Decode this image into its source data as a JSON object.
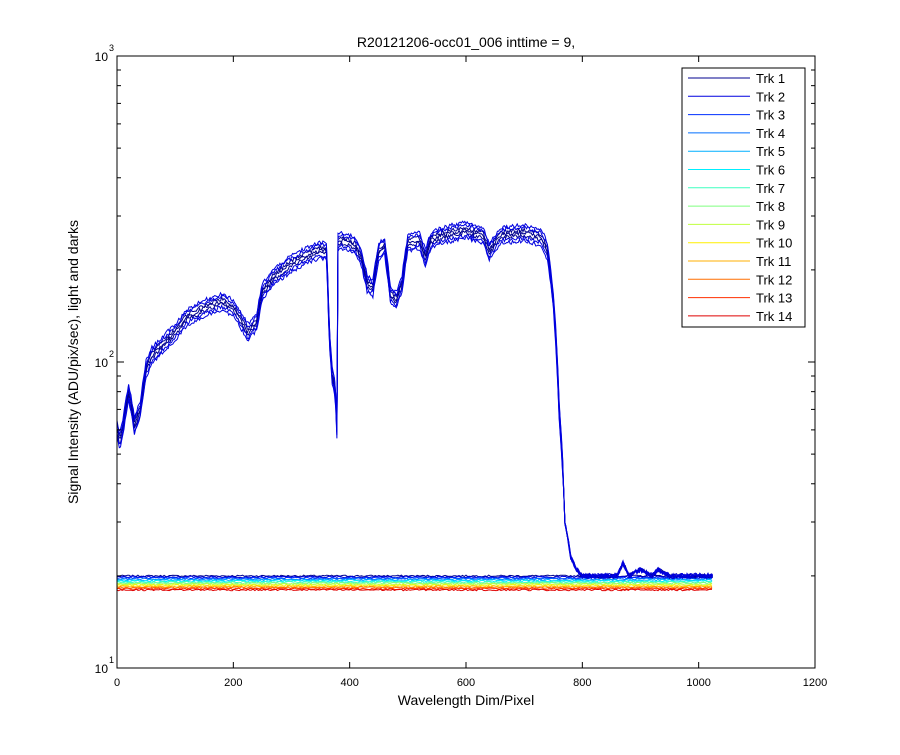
{
  "chart_data": {
    "type": "line",
    "title": "R20121206-occ01_006 inttime = 9,",
    "xlabel": "Wavelength Dim/Pixel",
    "ylabel": "Signal Intensity (ADU/pix/sec), light and darks",
    "xlim": [
      0,
      1200
    ],
    "ylim": [
      10,
      1000
    ],
    "y_scale": "log",
    "grid": false,
    "legend_position": "top-right",
    "x_ticks": [
      "0",
      "200",
      "400",
      "600",
      "800",
      "1000",
      "1200"
    ],
    "y_ticks": [
      {
        "base": "10",
        "exp": "1"
      },
      {
        "base": "10",
        "exp": "2"
      },
      {
        "base": "10",
        "exp": "3"
      }
    ],
    "series_colors": [
      "#00008f",
      "#0000df",
      "#002fff",
      "#006fff",
      "#00afff",
      "#00efff",
      "#3fffbf",
      "#7fff7f",
      "#bfff3f",
      "#ffef00",
      "#ffaf00",
      "#ff6f00",
      "#ff2f00",
      "#df0000"
    ],
    "series": [
      {
        "name": "Trk 1"
      },
      {
        "name": "Trk 2"
      },
      {
        "name": "Trk 3"
      },
      {
        "name": "Trk 4"
      },
      {
        "name": "Trk 5"
      },
      {
        "name": "Trk 6"
      },
      {
        "name": "Trk 7"
      },
      {
        "name": "Trk 8"
      },
      {
        "name": "Trk 9"
      },
      {
        "name": "Trk 10"
      },
      {
        "name": "Trk 11"
      },
      {
        "name": "Trk 12"
      },
      {
        "name": "Trk 13"
      },
      {
        "name": "Trk 14"
      }
    ],
    "light_spectrum": {
      "x": [
        0,
        5,
        10,
        20,
        30,
        40,
        50,
        60,
        80,
        100,
        120,
        150,
        180,
        200,
        220,
        225,
        240,
        250,
        270,
        300,
        330,
        350,
        360,
        365,
        370,
        375,
        378,
        380,
        385,
        400,
        410,
        420,
        430,
        440,
        450,
        460,
        470,
        480,
        490,
        500,
        520,
        530,
        540,
        560,
        580,
        600,
        630,
        640,
        660,
        700,
        730,
        740,
        750,
        760,
        770,
        780,
        790,
        800,
        820,
        850,
        860,
        870,
        880,
        900,
        920,
        930,
        950,
        1000,
        1025
      ],
      "y": [
        60,
        55,
        61,
        80,
        62,
        70,
        95,
        105,
        115,
        125,
        140,
        150,
        158,
        150,
        130,
        125,
        135,
        170,
        190,
        210,
        225,
        232,
        230,
        120,
        90,
        82,
        60,
        245,
        250,
        245,
        240,
        220,
        180,
        175,
        230,
        240,
        165,
        160,
        180,
        245,
        250,
        220,
        250,
        260,
        265,
        270,
        258,
        230,
        260,
        265,
        255,
        230,
        160,
        70,
        30,
        23,
        21,
        20,
        20,
        20,
        20,
        22,
        20,
        21,
        20,
        21,
        20,
        20,
        20
      ]
    },
    "dark_level": {
      "x_range": [
        0,
        1025
      ],
      "y_range": [
        18,
        20
      ]
    }
  }
}
